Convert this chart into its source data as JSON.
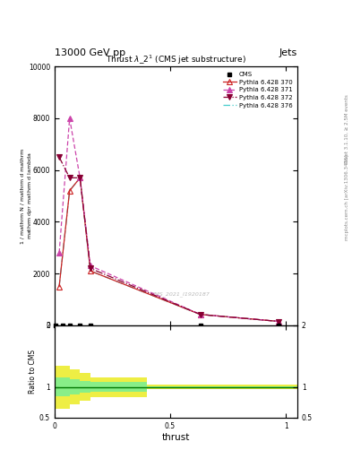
{
  "title_top": "13000 GeV pp",
  "title_right": "Jets",
  "plot_title": "Thrust $\\lambda$_2$^1$ (CMS jet substructure)",
  "watermark": "CMS_2021_I1920187",
  "right_label_1": "Rivet 3.1.10, ≥ 2.5M events",
  "right_label_2": "mcplots.cern.ch [arXiv:1306.3436]",
  "xlabel": "thrust",
  "ylim_main": [
    0,
    10000
  ],
  "ylim_ratio": [
    0.5,
    2.0
  ],
  "xlim": [
    0,
    1.05
  ],
  "yticks_main": [
    0,
    2000,
    4000,
    6000,
    8000,
    10000
  ],
  "ytick_labels_main": [
    "0",
    "2000",
    "4000",
    "6000",
    "8000",
    "10000"
  ],
  "xticks": [
    0,
    0.5,
    1.0
  ],
  "xtick_labels": [
    "0",
    "0.5",
    "1"
  ],
  "cms_x": [
    0.005,
    0.035,
    0.065,
    0.11,
    0.155,
    0.63,
    0.97
  ],
  "cms_y": [
    0,
    0,
    0,
    0,
    0,
    0,
    0
  ],
  "py370_x": [
    0.02,
    0.065,
    0.11,
    0.155,
    0.63,
    0.97
  ],
  "py370_y": [
    1500,
    5200,
    5700,
    2100,
    420,
    150
  ],
  "py371_x": [
    0.02,
    0.065,
    0.11,
    0.155,
    0.63,
    0.97
  ],
  "py371_y": [
    2800,
    8000,
    5700,
    2300,
    420,
    150
  ],
  "py372_x": [
    0.02,
    0.065,
    0.11,
    0.155,
    0.63,
    0.97
  ],
  "py372_y": [
    6500,
    5700,
    5700,
    2200,
    420,
    150
  ],
  "py376_x": [
    0.02,
    0.065,
    0.11,
    0.155,
    0.63,
    0.97
  ],
  "py376_y": [
    1500,
    5200,
    5700,
    2100,
    420,
    150
  ],
  "color_cms": "#000000",
  "color_py370": "#cc2222",
  "color_py371": "#cc44aa",
  "color_py372": "#880033",
  "color_py376": "#44cccc",
  "color_ratio_line": "#007700",
  "color_yellow": "#eeee44",
  "color_green": "#88ee88",
  "ratio_yellow_x": [
    0.0,
    0.02,
    0.065,
    0.11,
    0.155,
    0.4,
    1.05
  ],
  "ratio_yellow_lo": [
    0.65,
    0.65,
    0.72,
    0.78,
    0.84,
    0.965,
    0.975
  ],
  "ratio_yellow_hi": [
    1.35,
    1.35,
    1.28,
    1.22,
    1.16,
    1.035,
    1.025
  ],
  "ratio_green_x": [
    0.0,
    0.02,
    0.065,
    0.11,
    0.155,
    0.4,
    1.05
  ],
  "ratio_green_lo": [
    0.85,
    0.85,
    0.88,
    0.9,
    0.92,
    0.988,
    0.993
  ],
  "ratio_green_hi": [
    1.15,
    1.15,
    1.12,
    1.1,
    1.08,
    1.012,
    1.007
  ],
  "bg_color": "#ffffff"
}
